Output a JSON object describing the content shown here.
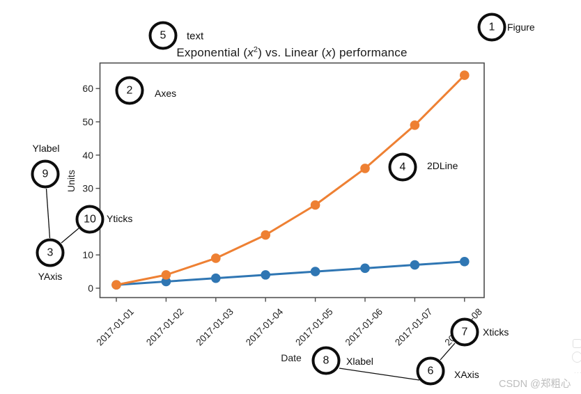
{
  "figure": {
    "title": {
      "p1": "Exponential (",
      "x1": "x",
      "sup1": "2",
      "p2": ") vs. Linear (",
      "x2": "x",
      "p3": ") performance"
    },
    "ylabel": "Units",
    "xlabel": "Date"
  },
  "chart_data": {
    "type": "line",
    "title": "Exponential (x^2) vs. Linear (x) performance",
    "xlabel": "Date",
    "ylabel": "Units",
    "x": [
      "2017-01-01",
      "2017-01-02",
      "2017-01-03",
      "2017-01-04",
      "2017-01-05",
      "2017-01-06",
      "2017-01-07",
      "2017-01-08"
    ],
    "series": [
      {
        "name": "linear (x)",
        "values": [
          1,
          2,
          3,
          4,
          5,
          6,
          7,
          8
        ],
        "color": "#2f76b3"
      },
      {
        "name": "exponential (x^2)",
        "values": [
          1,
          4,
          9,
          16,
          25,
          36,
          49,
          64
        ],
        "color": "#ee8033"
      }
    ],
    "yticks": [
      0,
      10,
      20,
      30,
      40,
      50,
      60
    ],
    "ylim": [
      -3,
      67
    ],
    "grid": false,
    "legend": null,
    "xtick_rotation": 45,
    "markers": "circle"
  },
  "annotations": [
    {
      "num": "1",
      "label": "Figure"
    },
    {
      "num": "2",
      "label": "Axes"
    },
    {
      "num": "3",
      "label": "YAxis"
    },
    {
      "num": "4",
      "label": "2DLine"
    },
    {
      "num": "5",
      "label": "text"
    },
    {
      "num": "6",
      "label": "XAxis"
    },
    {
      "num": "7",
      "label": "Xticks"
    },
    {
      "num": "8",
      "label": "Xlabel"
    },
    {
      "num": "9",
      "label": "Ylabel"
    },
    {
      "num": "10",
      "label": "Yticks"
    }
  ],
  "colors": {
    "spine": "#4d4d4d",
    "tick_text": "#1f1f1f",
    "annotation_ink": "#0d0d0d",
    "watermark": "#bdbdbd"
  },
  "watermark": {
    "text": "CSDN @郑粗心"
  }
}
